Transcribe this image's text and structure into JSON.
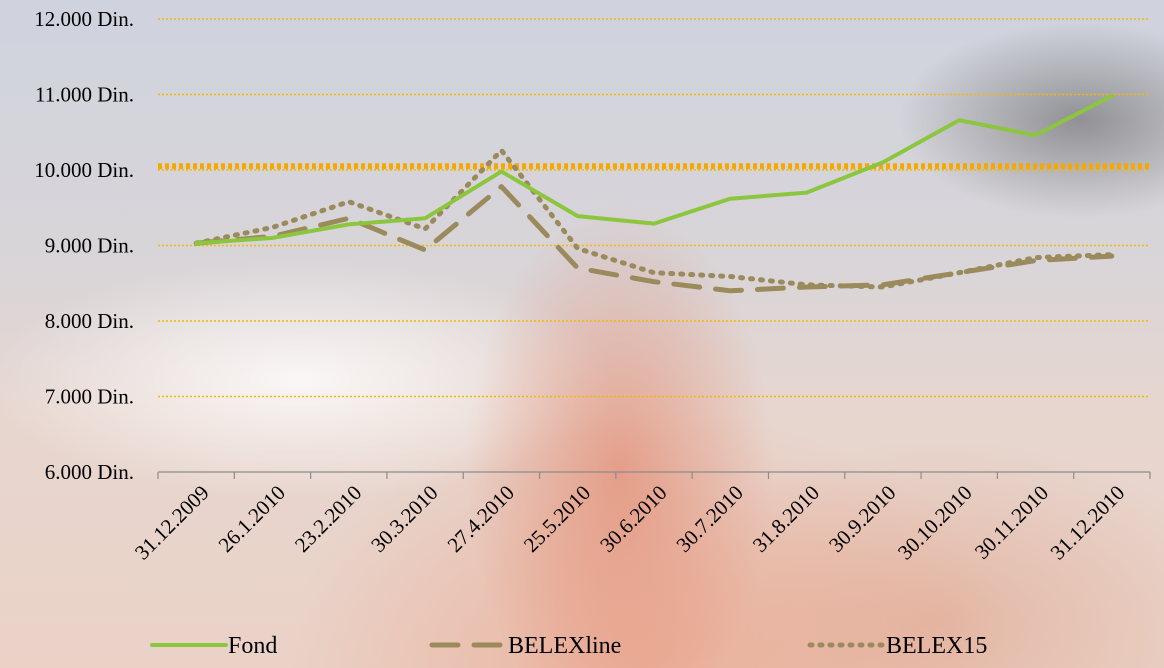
{
  "chart_data": {
    "type": "line",
    "categories": [
      "31.12.2009",
      "26.1.2010",
      "23.2.2010",
      "30.3.2010",
      "27.4.2010",
      "25.5.2010",
      "30.6.2010",
      "30.7.2010",
      "31.8.2010",
      "30.9.2010",
      "30.10.2010",
      "30.11.2010",
      "31.12.2010"
    ],
    "series": [
      {
        "name": "Fond",
        "values": [
          9030,
          9100,
          9280,
          9360,
          9980,
          9390,
          9290,
          9620,
          9700,
          10100,
          10660,
          10460,
          10980
        ],
        "color": "#8cc63f",
        "dash": "solid"
      },
      {
        "name": "BELEXline",
        "values": [
          9030,
          9120,
          9360,
          8940,
          9780,
          8700,
          8520,
          8400,
          8450,
          8480,
          8640,
          8800,
          8860
        ],
        "color": "#9a8a5c",
        "dash": "dashed"
      },
      {
        "name": "BELEX15",
        "values": [
          9030,
          9240,
          9580,
          9220,
          10260,
          8960,
          8640,
          8590,
          8480,
          8450,
          8640,
          8840,
          8880
        ],
        "color": "#9a8a5c",
        "dash": "dotted"
      }
    ],
    "reference_line": {
      "value": 10050,
      "color": "#f5a800"
    },
    "ylim": [
      6000,
      12000
    ],
    "yticks": [
      "12.000 Din.",
      "11.000 Din.",
      "10.000 Din.",
      "9.000 Din.",
      "8.000 Din.",
      "7.000 Din.",
      "6.000 Din."
    ],
    "grid": true,
    "grid_color": "#f5b800",
    "legend_position": "bottom",
    "title": "",
    "xlabel": "",
    "ylabel": ""
  }
}
